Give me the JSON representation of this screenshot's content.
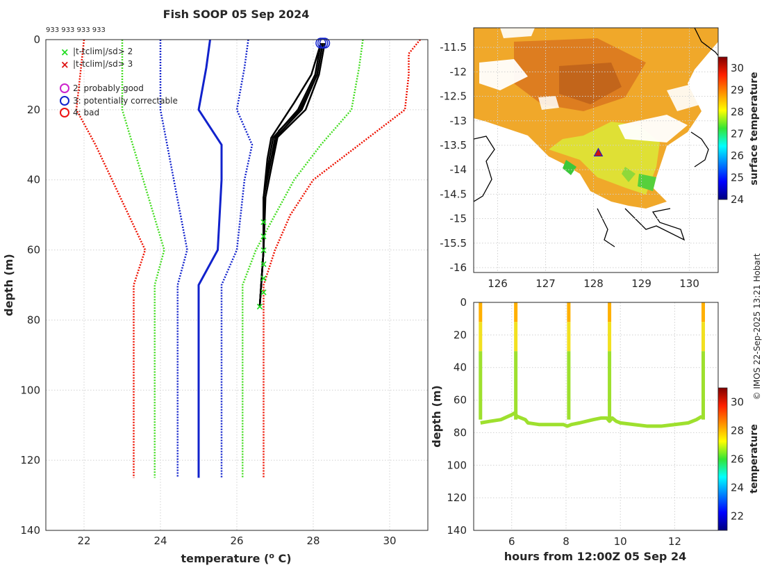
{
  "chart_data": [
    {
      "type": "line",
      "title": "Fish SOOP 05 Sep 2024",
      "id_label": "933 933 933 933",
      "xlabel": "temperature (",
      "xlabel_sup": "o",
      "xlabel_tail": " C)",
      "ylabel": "depth (m)",
      "xlim": [
        21,
        31
      ],
      "ylim": [
        0,
        140
      ],
      "x_ticks": [
        22,
        24,
        26,
        28,
        30
      ],
      "y_ticks": [
        0,
        20,
        40,
        60,
        80,
        100,
        120,
        140
      ],
      "legend": [
        {
          "label": "|t-tclim|/sd> 2",
          "marker": "x",
          "color": "#22dd22"
        },
        {
          "label": "|t-tclim|/sd> 3",
          "marker": "x",
          "color": "#dd1111"
        },
        {
          "label": "2: probably good",
          "marker": "o",
          "color": "#cc22cc"
        },
        {
          "label": "3: potentially correctable",
          "marker": "o",
          "color": "#1122cc"
        },
        {
          "label": "4: bad",
          "marker": "o",
          "color": "#ee1111"
        }
      ],
      "climatology": [
        {
          "name": "clim -3sd",
          "color": "#ee1100",
          "style": "dotted",
          "depths": [
            0,
            20,
            30,
            60,
            70,
            125
          ],
          "temps": [
            22.0,
            21.8,
            22.3,
            23.6,
            23.3,
            23.3
          ]
        },
        {
          "name": "clim -2sd",
          "color": "#44dd22",
          "style": "dotted",
          "depths": [
            0,
            8,
            20,
            60,
            70,
            125
          ],
          "temps": [
            23.0,
            23.0,
            23.0,
            24.1,
            23.85,
            23.85
          ]
        },
        {
          "name": "clim -1sd",
          "color": "#1122cc",
          "style": "dotted",
          "depths": [
            0,
            8,
            20,
            60,
            70,
            125
          ],
          "temps": [
            24.0,
            24.0,
            24.0,
            24.7,
            24.45,
            24.45
          ]
        },
        {
          "name": "clim mean",
          "color": "#1122cc",
          "style": "solid",
          "depths": [
            0,
            8,
            20,
            30,
            40,
            60,
            70,
            125
          ],
          "temps": [
            25.3,
            25.2,
            25.0,
            25.6,
            25.6,
            25.5,
            25.0,
            25.0
          ]
        },
        {
          "name": "clim +1sd",
          "color": "#1122cc",
          "style": "dotted",
          "depths": [
            0,
            8,
            20,
            30,
            40,
            60,
            70,
            125
          ],
          "temps": [
            26.3,
            26.2,
            26.0,
            26.4,
            26.2,
            26.0,
            25.6,
            25.6
          ]
        },
        {
          "name": "clim +2sd",
          "color": "#44dd22",
          "style": "dotted",
          "depths": [
            0,
            8,
            20,
            30,
            40,
            60,
            70,
            125
          ],
          "temps": [
            29.3,
            29.2,
            29.0,
            28.2,
            27.5,
            26.5,
            26.15,
            26.15
          ]
        },
        {
          "name": "clim +3sd",
          "color": "#ee1100",
          "style": "dotted",
          "depths": [
            0,
            4,
            10,
            20,
            30,
            40,
            50,
            60,
            70,
            125
          ],
          "temps": [
            30.8,
            30.5,
            30.5,
            30.4,
            29.2,
            28.0,
            27.4,
            27.0,
            26.7,
            26.7
          ]
        }
      ],
      "profiles": [
        {
          "name": "profile 1",
          "depths": [
            1,
            10,
            20,
            28,
            34,
            45,
            60,
            76
          ],
          "temps": [
            28.25,
            28.1,
            27.7,
            27.0,
            26.9,
            26.7,
            26.7,
            26.6
          ]
        },
        {
          "name": "profile 2",
          "depths": [
            1,
            10,
            20,
            28,
            34,
            45,
            60,
            76
          ],
          "temps": [
            28.2,
            28.05,
            27.6,
            26.95,
            26.85,
            26.7,
            26.7,
            26.6
          ]
        },
        {
          "name": "profile 3",
          "depths": [
            1,
            10,
            20,
            28,
            34,
            45,
            60,
            76
          ],
          "temps": [
            28.3,
            28.15,
            27.8,
            27.05,
            26.9,
            26.7,
            26.7,
            26.6
          ]
        },
        {
          "name": "profile 4",
          "depths": [
            1,
            10,
            18,
            28,
            34,
            45,
            60,
            76
          ],
          "temps": [
            28.2,
            27.95,
            27.5,
            26.9,
            26.8,
            26.7,
            26.7,
            26.6
          ]
        },
        {
          "name": "profile 5",
          "depths": [
            1,
            10,
            20,
            26,
            34,
            45,
            60,
            76
          ],
          "temps": [
            28.25,
            28.1,
            27.65,
            27.1,
            26.95,
            26.75,
            26.7,
            26.6
          ]
        }
      ],
      "flag_points": {
        "bad_circles": [
          {
            "t": 28.2,
            "d": 1
          },
          {
            "t": 28.25,
            "d": 1
          },
          {
            "t": 28.3,
            "d": 1
          }
        ],
        "green_x": [
          {
            "t": 26.7,
            "d": 52
          },
          {
            "t": 26.7,
            "d": 56
          },
          {
            "t": 26.7,
            "d": 60
          },
          {
            "t": 26.7,
            "d": 64
          },
          {
            "t": 26.7,
            "d": 68
          },
          {
            "t": 26.7,
            "d": 72
          },
          {
            "t": 26.6,
            "d": 76
          }
        ]
      }
    },
    {
      "type": "heatmap",
      "colorbar_label": "surface temperature",
      "xlim": [
        125.5,
        130.6
      ],
      "ylim": [
        -16.1,
        -11.1
      ],
      "x_ticks": [
        126,
        127,
        128,
        129,
        130
      ],
      "y_ticks": [
        -11.5,
        -12,
        -12.5,
        -13,
        -13.5,
        -14,
        -14.5,
        -15,
        -15.5,
        -16
      ],
      "x_tick_labels": [
        "126",
        "127",
        "128",
        "129",
        "130"
      ],
      "y_tick_labels": [
        "-11.5",
        "-12",
        "-12.5",
        "-13",
        "-13.5",
        "-14",
        "-14.5",
        "-15",
        "-15.5",
        "-16"
      ],
      "clim": [
        24,
        30.5
      ],
      "colorbar_ticks": [
        24,
        25,
        26,
        27,
        28,
        29,
        30
      ],
      "colorbar_tick_labels": [
        "24",
        "25",
        "26",
        "27",
        "28",
        "29",
        "30"
      ],
      "station": {
        "lon": 128.1,
        "lat": -13.65
      }
    },
    {
      "type": "scatter",
      "xlabel": "hours from 12:00Z 05 Sep 24",
      "ylabel": "depth (m)",
      "colorbar_label": "temperature",
      "xlim": [
        4.6,
        13.6
      ],
      "ylim": [
        0,
        140
      ],
      "x_ticks": [
        6,
        8,
        10,
        12
      ],
      "y_ticks": [
        0,
        20,
        40,
        60,
        80,
        100,
        120,
        140
      ],
      "x_tick_labels": [
        "6",
        "8",
        "10",
        "12"
      ],
      "y_tick_labels": [
        "0",
        "20",
        "40",
        "60",
        "80",
        "100",
        "120",
        "140"
      ],
      "clim": [
        21,
        31
      ],
      "colorbar_ticks": [
        22,
        24,
        26,
        28,
        30
      ],
      "colorbar_tick_labels": [
        "22",
        "24",
        "26",
        "28",
        "30"
      ],
      "bottom_track": {
        "hours": [
          4.85,
          5.2,
          5.6,
          6.0,
          6.1,
          6.2,
          6.5,
          6.6,
          7.0,
          7.5,
          7.9,
          8.05,
          8.2,
          8.5,
          9.0,
          9.3,
          9.5,
          9.6,
          9.7,
          9.85,
          10.0,
          10.5,
          11.0,
          11.5,
          12.0,
          12.5,
          12.8,
          13.0
        ],
        "depths": [
          74,
          73,
          72,
          69,
          68,
          70,
          72,
          74,
          75,
          75,
          75,
          76,
          75,
          74,
          72,
          71,
          71,
          73,
          71,
          73,
          74,
          75,
          76,
          76,
          75,
          74,
          72,
          70
        ]
      },
      "casts": [
        4.85,
        6.15,
        8.1,
        9.6,
        13.05
      ]
    }
  ],
  "footer": {
    "credit": "© IMOS 22-Sep-2025 13:21 Hobart"
  }
}
